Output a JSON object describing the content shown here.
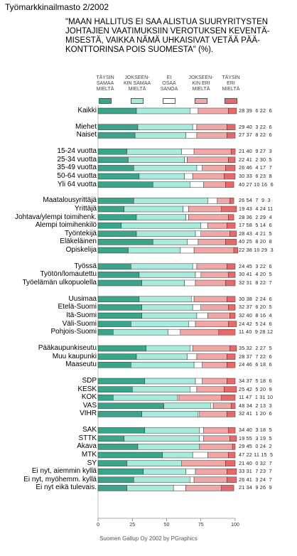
{
  "header": {
    "title": "Työmarkkinailmasto 2/2002",
    "question": "\"MAAN HALLITUS EI SAA ALISTUA SUURYRITYSTEN\nJOHTAJIEN VAATIMUKSIIN VEROTUKSEN KEVENTÄ-\nMISESTÄ, VAIKKA NÄMÄ UHKAISIVAT VETÄÄ PÄÄ-\nKONTTORINSA POIS SUOMESTA\" (%)."
  },
  "footer": {
    "source": "Suomen Gallup Oy 2002 by PGraphics"
  },
  "colors": {
    "taysin_samaa": "#3aa58a",
    "jokseenkin_samaa": "#a8eadb",
    "ei_osaa": "#ffffff",
    "jokseenkin_eri": "#f2a7a7",
    "taysin_eri": "#e66a6a"
  },
  "chart_data": {
    "type": "bar",
    "orientation": "horizontal",
    "stacked": true,
    "xlim": [
      0,
      100
    ],
    "xticks": [
      "0",
      "25",
      "50",
      "75",
      "100"
    ],
    "series_names": [
      "TÄYSIN\nSAMAA\nMIELTÄ",
      "JOKSEEN-\nKIN SAMAA\nMIELTÄ",
      "EI\nOSAA\nSANOA",
      "JOKSEEN-\nKIN ERI\nMIELTÄ",
      "TÄYSIN\nERI\nMIELTÄ"
    ],
    "groups": [
      {
        "rows": [
          {
            "label": "Kaikki",
            "values": [
              28,
              39,
              6,
              22,
              6
            ]
          }
        ]
      },
      {
        "rows": [
          {
            "label": "Miehet",
            "values": [
              29,
              40,
              3,
              22,
              6
            ]
          },
          {
            "label": "Naiset",
            "values": [
              27,
              37,
              8,
              22,
              6
            ]
          }
        ]
      },
      {
        "rows": [
          {
            "label": "15-24 vuotta",
            "values": [
              21,
              40,
              9,
              27,
              3
            ]
          },
          {
            "label": "25-34 vuotta",
            "values": [
              22,
              41,
              2,
              30,
              5
            ]
          },
          {
            "label": "35-49 vuotta",
            "values": [
              26,
              46,
              4,
              17,
              7
            ]
          },
          {
            "label": "50-64 vuotta",
            "values": [
              30,
              33,
              6,
              23,
              8
            ]
          },
          {
            "label": "Yli 64 vuotta",
            "values": [
              40,
              27,
              10,
              16,
              6
            ]
          }
        ]
      },
      {
        "rows": [
          {
            "label": "Maatalousyrittäjä",
            "values": [
              26,
              54,
              7,
              9,
              3
            ]
          },
          {
            "label": "Yrittäjä",
            "values": [
              19,
              43,
              4,
              24,
              11
            ]
          },
          {
            "label": "Johtava/ylempi toimihenk.",
            "values": [
              28,
              36,
              2,
              29,
              4
            ]
          },
          {
            "label": "Alempi toimihenkilö",
            "values": [
              17,
              58,
              5,
              14,
              6
            ]
          },
          {
            "label": "Työntekijä",
            "values": [
              28,
              43,
              4,
              21,
              5
            ]
          },
          {
            "label": "Eläkeläinen",
            "values": [
              40,
              25,
              8,
              20,
              8
            ]
          },
          {
            "label": "Opiskelija",
            "values": [
              22,
              38,
              10,
              29,
              3
            ]
          }
        ]
      },
      {
        "rows": [
          {
            "label": "Työssä",
            "values": [
              24,
              45,
              3,
              22,
              6
            ]
          },
          {
            "label": "Työtön/lomautettu",
            "values": [
              30,
              41,
              4,
              20,
              5
            ]
          },
          {
            "label": "Työelämän ulkopuolella",
            "values": [
              32,
              31,
              8,
              22,
              7
            ]
          }
        ]
      },
      {
        "rows": [
          {
            "label": "Uusimaa",
            "values": [
              30,
              38,
              2,
              24,
              6
            ]
          },
          {
            "label": "Etelä-Suomi",
            "values": [
              32,
              37,
              6,
              20,
              5
            ]
          },
          {
            "label": "Itä-Suomi",
            "values": [
              32,
              40,
              8,
              16,
              4
            ]
          },
          {
            "label": "Väli-Suomi",
            "values": [
              24,
              42,
              5,
              24,
              6
            ]
          },
          {
            "label": "Pohjois-Suomi",
            "values": [
              11,
              40,
              9,
              28,
              12
            ]
          }
        ]
      },
      {
        "rows": [
          {
            "label": "Pääkaupunkiseutu",
            "values": [
              35,
              32,
              2,
              27,
              5
            ]
          },
          {
            "label": "Muu kaupunki",
            "values": [
              28,
              37,
              7,
              22,
              6
            ]
          },
          {
            "label": "Maaseutu",
            "values": [
              24,
              46,
              6,
              18,
              6
            ]
          }
        ]
      },
      {
        "rows": [
          {
            "label": "SDP",
            "values": [
              34,
              37,
              5,
              18,
              6
            ]
          },
          {
            "label": "KESK",
            "values": [
              25,
              42,
              5,
              20,
              9
            ]
          },
          {
            "label": "KOK",
            "values": [
              11,
              47,
              1,
              31,
              10
            ]
          },
          {
            "label": "VAS",
            "values": [
              48,
              34,
              2,
              13,
              3
            ]
          },
          {
            "label": "VIHR",
            "values": [
              32,
              41,
              1,
              20,
              6
            ]
          }
        ]
      },
      {
        "rows": [
          {
            "label": "SAK",
            "values": [
              34,
              40,
              3,
              18,
              5
            ]
          },
          {
            "label": "STTK",
            "values": [
              19,
              55,
              3,
              19,
              5
            ]
          },
          {
            "label": "Akava",
            "values": [
              29,
              45,
              0,
              24,
              2
            ]
          },
          {
            "label": "MTK",
            "values": [
              47,
              22,
              11,
              15,
              5
            ]
          },
          {
            "label": "SY",
            "values": [
              21,
              40,
              0,
              32,
              7
            ]
          },
          {
            "label": "Ei nyt, aiemmin kyllä",
            "values": [
              33,
              31,
              7,
              23,
              7
            ]
          },
          {
            "label": "Ei nyt, myöhemm. kyllä",
            "values": [
              26,
              41,
              3,
              24,
              7
            ]
          },
          {
            "label": "Ei nyt eikä tulevais.",
            "values": [
              21,
              34,
              9,
              26,
              9
            ]
          }
        ]
      }
    ]
  }
}
